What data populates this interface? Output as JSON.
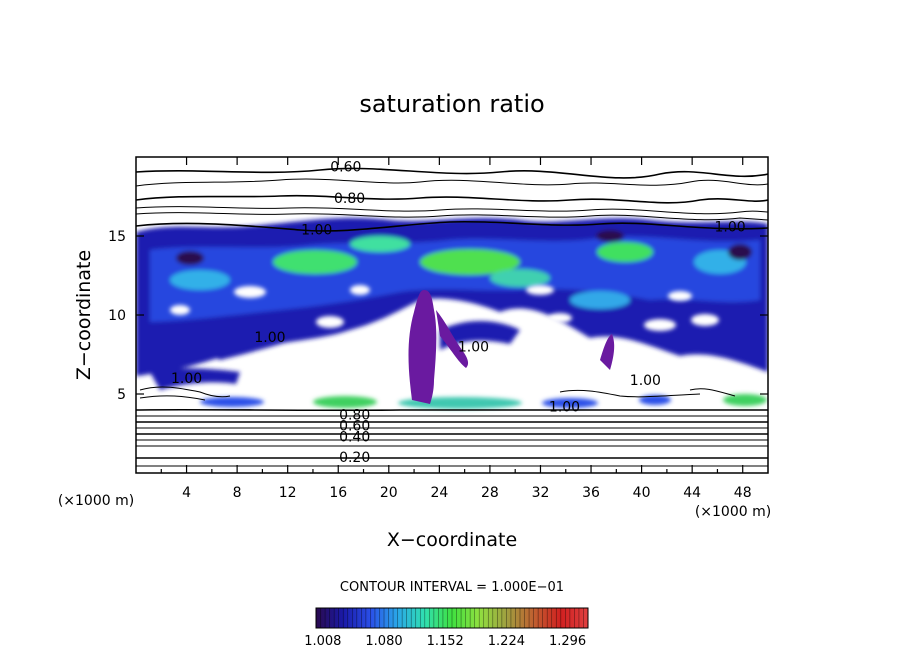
{
  "chart_data": {
    "type": "heatmap",
    "title": "saturation ratio",
    "xlabel": "X−coordinate",
    "ylabel": "Z−coordinate",
    "x_unit": "(×1000 m)",
    "y_unit": "(×1000 m)",
    "xlim": [
      0,
      50
    ],
    "ylim": [
      0,
      20
    ],
    "x_ticks": [
      4,
      8,
      12,
      16,
      20,
      24,
      28,
      32,
      36,
      40,
      44,
      48
    ],
    "y_ticks": [
      5,
      10,
      15
    ],
    "contour_interval_text": "CONTOUR INTERVAL = 1.000E−01",
    "contour_labels": [
      {
        "text": "0.60",
        "x": 16.6,
        "z": 19.4
      },
      {
        "text": "0.80",
        "x": 16.9,
        "z": 17.4
      },
      {
        "text": "1.00",
        "x": 14.3,
        "z": 15.4
      },
      {
        "text": "1.00",
        "x": 47.0,
        "z": 15.6
      },
      {
        "text": "1.00",
        "x": 10.6,
        "z": 8.6
      },
      {
        "text": "1.00",
        "x": 4.0,
        "z": 6.0
      },
      {
        "text": "1.00",
        "x": 26.7,
        "z": 8.0
      },
      {
        "text": "1.00",
        "x": 40.3,
        "z": 5.9
      },
      {
        "text": "1.00",
        "x": 33.9,
        "z": 4.2
      },
      {
        "text": "0.80",
        "x": 17.3,
        "z": 3.7
      },
      {
        "text": "0.60",
        "x": 17.3,
        "z": 3.0
      },
      {
        "text": "0.40",
        "x": 17.3,
        "z": 2.3
      },
      {
        "text": "0.20",
        "x": 17.3,
        "z": 1.0
      }
    ],
    "colorbar": {
      "tick_labels": [
        "1.008",
        "1.080",
        "1.152",
        "1.224",
        "1.296"
      ],
      "range": [
        1.0,
        1.32
      ],
      "colors": [
        "#2a0a4e",
        "#1a1aa8",
        "#2a4fe8",
        "#2aa8e8",
        "#30e0b0",
        "#40e040",
        "#90e040",
        "#a0a040",
        "#c06030",
        "#d02020",
        "#e04040"
      ]
    },
    "grid": false,
    "legend": "none"
  }
}
